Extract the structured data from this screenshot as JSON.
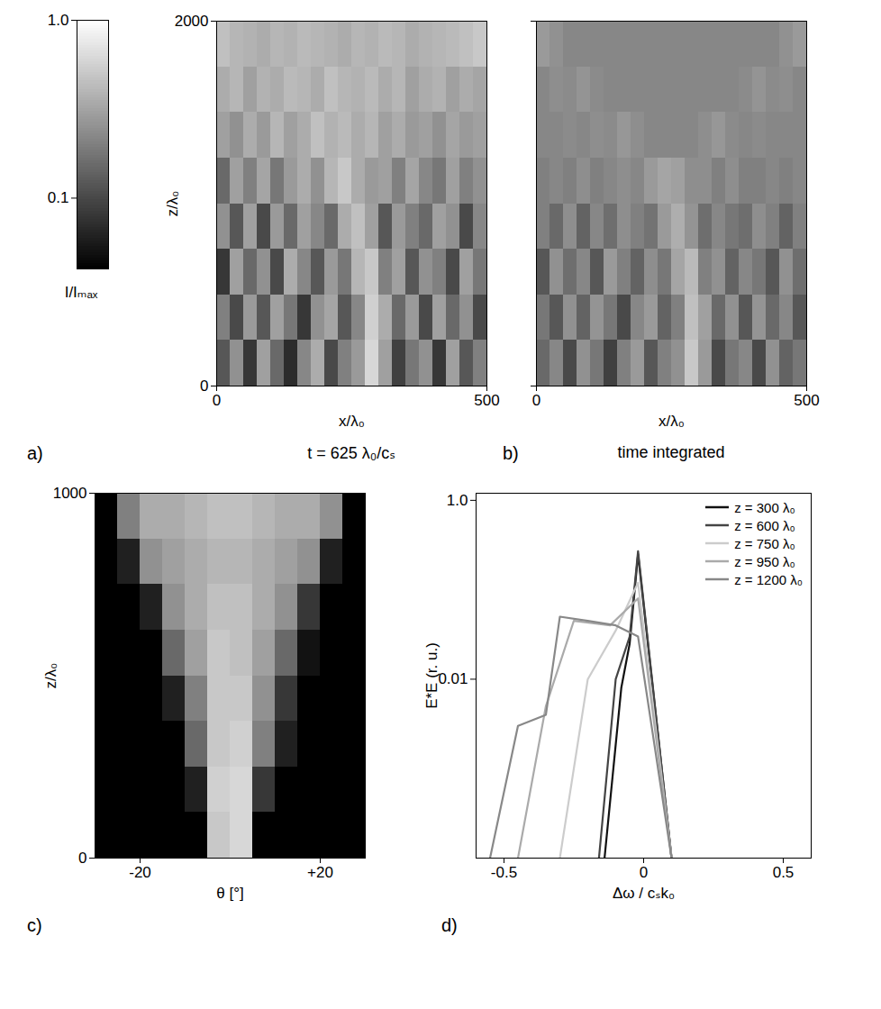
{
  "chart_data": [
    {
      "type": "colorbar",
      "ylabel": "I/Iₘₐₓ",
      "log": "y",
      "ylim": [
        0.04,
        1
      ],
      "yticks": [
        {
          "value": 1,
          "label": "1.0"
        },
        0.1
      ]
    },
    {
      "type": "heatmap",
      "panel": "a)",
      "caption": "t = 625 λ₀/cₛ",
      "xlabel": "x/λ₀",
      "ylabel": "z/λ₀",
      "xlim": [
        0,
        500
      ],
      "xticks": [
        0,
        500
      ],
      "ylim": [
        0,
        2000
      ],
      "yticks": [
        0,
        2000
      ],
      "x_edges": [
        0,
        25,
        50,
        75,
        100,
        125,
        150,
        175,
        200,
        225,
        250,
        275,
        300,
        325,
        350,
        375,
        400,
        425,
        450,
        475,
        500
      ],
      "y_edges": [
        0,
        250,
        500,
        750,
        1000,
        1250,
        1500,
        1750,
        2000
      ],
      "cells": [
        [
          0.12,
          0.25,
          0.08,
          0.3,
          0.15,
          0.07,
          0.22,
          0.35,
          0.1,
          0.2,
          0.28,
          0.6,
          0.3,
          0.09,
          0.18,
          0.25,
          0.08,
          0.3,
          0.12,
          0.2
        ],
        [
          0.2,
          0.1,
          0.28,
          0.12,
          0.3,
          0.18,
          0.08,
          0.25,
          0.32,
          0.12,
          0.22,
          0.55,
          0.35,
          0.15,
          0.28,
          0.1,
          0.3,
          0.15,
          0.25,
          0.1
        ],
        [
          0.08,
          0.3,
          0.15,
          0.25,
          0.1,
          0.35,
          0.22,
          0.12,
          0.28,
          0.18,
          0.4,
          0.5,
          0.2,
          0.3,
          0.12,
          0.25,
          0.2,
          0.1,
          0.3,
          0.18
        ],
        [
          0.25,
          0.12,
          0.3,
          0.1,
          0.28,
          0.15,
          0.3,
          0.22,
          0.15,
          0.35,
          0.45,
          0.3,
          0.12,
          0.28,
          0.2,
          0.15,
          0.3,
          0.25,
          0.1,
          0.22
        ],
        [
          0.15,
          0.3,
          0.2,
          0.32,
          0.18,
          0.28,
          0.35,
          0.25,
          0.4,
          0.5,
          0.35,
          0.28,
          0.3,
          0.2,
          0.32,
          0.22,
          0.18,
          0.3,
          0.2,
          0.25
        ],
        [
          0.3,
          0.25,
          0.35,
          0.28,
          0.4,
          0.3,
          0.35,
          0.45,
          0.38,
          0.42,
          0.35,
          0.4,
          0.3,
          0.35,
          0.28,
          0.3,
          0.25,
          0.32,
          0.28,
          0.3
        ],
        [
          0.35,
          0.4,
          0.3,
          0.38,
          0.35,
          0.42,
          0.4,
          0.35,
          0.45,
          0.4,
          0.38,
          0.42,
          0.35,
          0.4,
          0.3,
          0.35,
          0.38,
          0.3,
          0.35,
          0.32
        ],
        [
          0.45,
          0.4,
          0.38,
          0.35,
          0.4,
          0.38,
          0.42,
          0.4,
          0.38,
          0.35,
          0.4,
          0.38,
          0.42,
          0.4,
          0.35,
          0.38,
          0.4,
          0.42,
          0.45,
          0.5
        ]
      ]
    },
    {
      "type": "heatmap",
      "panel": "b)",
      "caption": "time integrated",
      "xlabel": "x/λ₀",
      "tick_labels": "x",
      "xlim": [
        0,
        500
      ],
      "xticks": [
        0,
        500
      ],
      "ylim": [
        0,
        2000
      ],
      "yticks": [
        0,
        2000
      ],
      "x_edges": [
        0,
        25,
        50,
        75,
        100,
        125,
        150,
        175,
        200,
        225,
        250,
        275,
        300,
        325,
        350,
        375,
        400,
        425,
        450,
        475,
        500
      ],
      "y_edges": [
        0,
        250,
        500,
        750,
        1000,
        1250,
        1500,
        1750,
        2000
      ],
      "cells": [
        [
          0.15,
          0.22,
          0.1,
          0.25,
          0.18,
          0.09,
          0.2,
          0.28,
          0.12,
          0.2,
          0.25,
          0.5,
          0.28,
          0.1,
          0.18,
          0.22,
          0.1,
          0.25,
          0.14,
          0.18
        ],
        [
          0.18,
          0.12,
          0.25,
          0.14,
          0.26,
          0.18,
          0.1,
          0.22,
          0.28,
          0.14,
          0.2,
          0.45,
          0.3,
          0.15,
          0.25,
          0.12,
          0.26,
          0.15,
          0.22,
          0.12
        ],
        [
          0.12,
          0.25,
          0.16,
          0.22,
          0.12,
          0.28,
          0.2,
          0.14,
          0.24,
          0.18,
          0.32,
          0.42,
          0.2,
          0.25,
          0.14,
          0.22,
          0.18,
          0.12,
          0.25,
          0.16
        ],
        [
          0.2,
          0.15,
          0.24,
          0.14,
          0.22,
          0.16,
          0.24,
          0.2,
          0.17,
          0.28,
          0.36,
          0.26,
          0.16,
          0.22,
          0.18,
          0.16,
          0.24,
          0.2,
          0.14,
          0.2
        ],
        [
          0.2,
          0.22,
          0.2,
          0.24,
          0.2,
          0.22,
          0.24,
          0.22,
          0.28,
          0.32,
          0.3,
          0.24,
          0.24,
          0.2,
          0.24,
          0.2,
          0.2,
          0.22,
          0.2,
          0.22
        ],
        [
          0.22,
          0.22,
          0.23,
          0.22,
          0.24,
          0.23,
          0.27,
          0.24,
          0.22,
          0.22,
          0.22,
          0.22,
          0.24,
          0.27,
          0.23,
          0.22,
          0.23,
          0.22,
          0.22,
          0.22
        ],
        [
          0.22,
          0.24,
          0.23,
          0.26,
          0.23,
          0.22,
          0.22,
          0.22,
          0.22,
          0.22,
          0.22,
          0.22,
          0.22,
          0.22,
          0.22,
          0.23,
          0.26,
          0.23,
          0.24,
          0.22
        ],
        [
          0.28,
          0.25,
          0.22,
          0.22,
          0.22,
          0.22,
          0.22,
          0.22,
          0.22,
          0.22,
          0.22,
          0.22,
          0.22,
          0.22,
          0.22,
          0.22,
          0.22,
          0.22,
          0.25,
          0.28
        ]
      ]
    },
    {
      "type": "heatmap",
      "panel": "c)",
      "xlabel": "θ [°]",
      "ylabel": "z/λ₀",
      "xlim": [
        -30,
        30
      ],
      "xticks": [
        -20,
        {
          "value": 20,
          "label": "+20"
        }
      ],
      "ylim": [
        0,
        1000
      ],
      "yticks": [
        0,
        1000
      ],
      "x_edges": [
        -30,
        -25,
        -20,
        -15,
        -10,
        -5,
        0,
        5,
        10,
        15,
        20,
        25,
        30
      ],
      "y_edges": [
        0,
        125,
        250,
        375,
        500,
        625,
        750,
        875,
        1000
      ],
      "cells": [
        [
          0.04,
          0.04,
          0.04,
          0.04,
          0.04,
          0.5,
          0.6,
          0.04,
          0.04,
          0.04,
          0.04,
          0.04
        ],
        [
          0.04,
          0.04,
          0.04,
          0.04,
          0.06,
          0.55,
          0.6,
          0.08,
          0.04,
          0.04,
          0.04,
          0.04
        ],
        [
          0.04,
          0.04,
          0.04,
          0.04,
          0.15,
          0.5,
          0.55,
          0.2,
          0.06,
          0.04,
          0.04,
          0.04
        ],
        [
          0.04,
          0.04,
          0.04,
          0.06,
          0.2,
          0.5,
          0.5,
          0.25,
          0.08,
          0.04,
          0.04,
          0.04
        ],
        [
          0.04,
          0.04,
          0.04,
          0.15,
          0.3,
          0.5,
          0.45,
          0.3,
          0.15,
          0.05,
          0.04,
          0.04
        ],
        [
          0.04,
          0.04,
          0.06,
          0.25,
          0.35,
          0.45,
          0.45,
          0.35,
          0.25,
          0.08,
          0.04,
          0.04
        ],
        [
          0.04,
          0.06,
          0.25,
          0.3,
          0.35,
          0.4,
          0.4,
          0.35,
          0.3,
          0.25,
          0.06,
          0.04
        ],
        [
          0.04,
          0.2,
          0.35,
          0.35,
          0.4,
          0.45,
          0.45,
          0.4,
          0.35,
          0.35,
          0.25,
          0.04
        ]
      ]
    },
    {
      "type": "line",
      "panel": "d)",
      "xlabel": "Δω / cₛk₀",
      "ylabel": "E*E (r. u.)",
      "log": "y",
      "legend": "top-right",
      "xlim": [
        -0.6,
        0.6
      ],
      "xticks": [
        -0.5,
        0,
        0.5
      ],
      "ylim": [
        0.0001,
        1.2
      ],
      "yticks": [
        0.01,
        {
          "value": 1,
          "label": "1.0"
        }
      ],
      "series": [
        {
          "name": "z = 300 λ₀",
          "color": "#111111",
          "x": [
            -0.14,
            -0.08,
            -0.05,
            -0.02,
            0.1
          ],
          "values": [
            0.0001,
            0.008,
            0.025,
            0.25,
            0.0001
          ]
        },
        {
          "name": "z = 600 λ₀",
          "color": "#444444",
          "x": [
            -0.16,
            -0.1,
            -0.05,
            -0.02,
            0.1
          ],
          "values": [
            0.0001,
            0.01,
            0.03,
            0.27,
            0.0001
          ]
        },
        {
          "name": "z = 750 λ₀",
          "color": "#cccccc",
          "x": [
            -0.3,
            -0.2,
            -0.1,
            -0.02,
            0.1
          ],
          "values": [
            0.0001,
            0.01,
            0.035,
            0.12,
            0.0001
          ]
        },
        {
          "name": "z = 950 λ₀",
          "color": "#aaaaaa",
          "x": [
            -0.45,
            -0.35,
            -0.25,
            -0.12,
            -0.02,
            0.1
          ],
          "values": [
            0.0001,
            0.005,
            0.045,
            0.04,
            0.08,
            0.0001
          ]
        },
        {
          "name": "z = 1200 λ₀",
          "color": "#888888",
          "x": [
            -0.55,
            -0.45,
            -0.35,
            -0.3,
            -0.2,
            -0.1,
            -0.02,
            0.1
          ],
          "values": [
            0.0001,
            0.003,
            0.004,
            0.05,
            0.045,
            0.04,
            0.03,
            0.0001
          ]
        }
      ]
    }
  ]
}
